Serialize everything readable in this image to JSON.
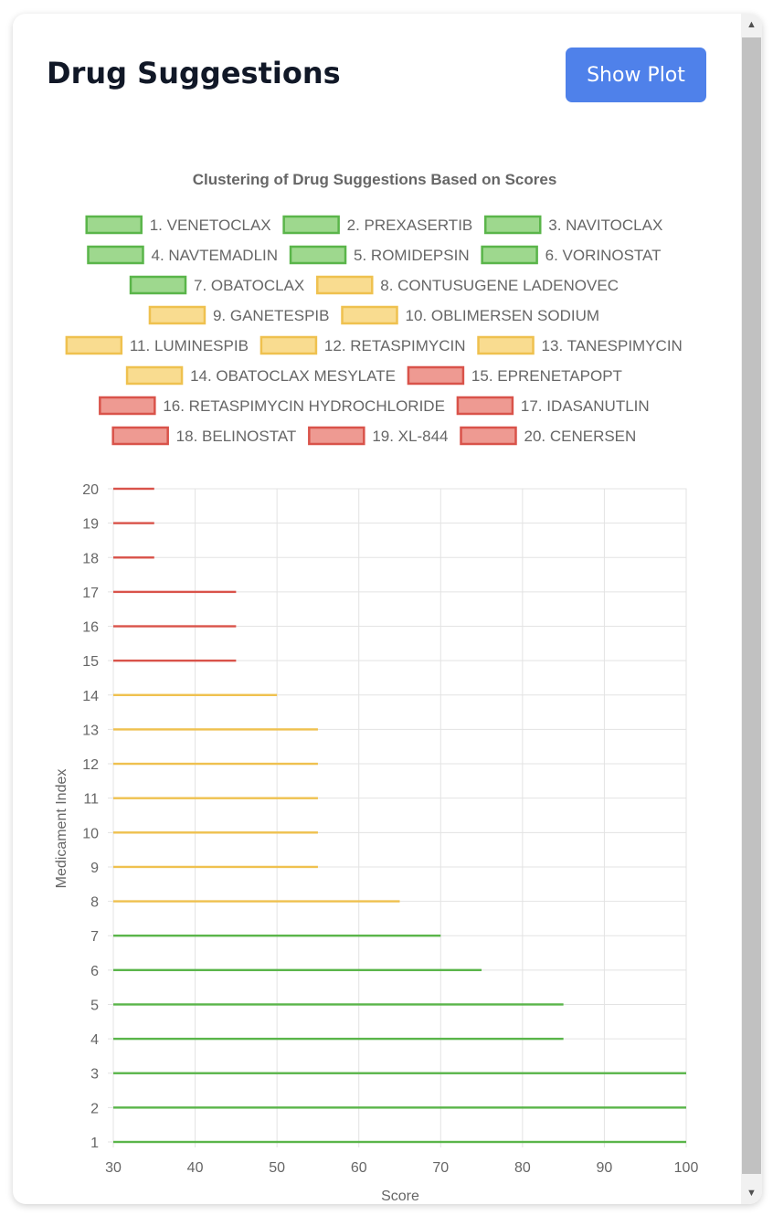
{
  "header": {
    "title": "Drug Suggestions",
    "show_plot_label": "Show Plot"
  },
  "colors": {
    "green_stroke": "#5ab54a",
    "green_fill": "#9ed88e",
    "yellow_stroke": "#efc14f",
    "yellow_fill": "#f9dc90",
    "red_stroke": "#d9534a",
    "red_fill": "#ee9a92",
    "grid": "#e3e3e3",
    "text": "#666666"
  },
  "icons": {
    "scroll_up": "▲",
    "scroll_down": "▼"
  },
  "chart_data": {
    "type": "bar",
    "orientation": "horizontal",
    "title": "Clustering of Drug Suggestions Based on Scores",
    "xlabel": "Score",
    "ylabel": "Medicament Index",
    "xlim": [
      30,
      100
    ],
    "ylim": [
      1,
      20
    ],
    "x_ticks": [
      30,
      40,
      50,
      60,
      70,
      80,
      90,
      100
    ],
    "y_ticks": [
      1,
      2,
      3,
      4,
      5,
      6,
      7,
      8,
      9,
      10,
      11,
      12,
      13,
      14,
      15,
      16,
      17,
      18,
      19,
      20
    ],
    "grid": true,
    "legend_position": "top-center",
    "series": [
      {
        "name": "1. VENETOCLAX",
        "index": 1,
        "score": 100,
        "group": "green"
      },
      {
        "name": "2. PREXASERTIB",
        "index": 2,
        "score": 100,
        "group": "green"
      },
      {
        "name": "3. NAVITOCLAX",
        "index": 3,
        "score": 100,
        "group": "green"
      },
      {
        "name": "4. NAVTEMADLIN",
        "index": 4,
        "score": 85,
        "group": "green"
      },
      {
        "name": "5. ROMIDEPSIN",
        "index": 5,
        "score": 85,
        "group": "green"
      },
      {
        "name": "6. VORINOSTAT",
        "index": 6,
        "score": 75,
        "group": "green"
      },
      {
        "name": "7. OBATOCLAX",
        "index": 7,
        "score": 70,
        "group": "green"
      },
      {
        "name": "8. CONTUSUGENE LADENOVEC",
        "index": 8,
        "score": 65,
        "group": "yellow"
      },
      {
        "name": "9. GANETESPIB",
        "index": 9,
        "score": 55,
        "group": "yellow"
      },
      {
        "name": "10. OBLIMERSEN SODIUM",
        "index": 10,
        "score": 55,
        "group": "yellow"
      },
      {
        "name": "11. LUMINESPIB",
        "index": 11,
        "score": 55,
        "group": "yellow"
      },
      {
        "name": "12. RETASPIMYCIN",
        "index": 12,
        "score": 55,
        "group": "yellow"
      },
      {
        "name": "13. TANESPIMYCIN",
        "index": 13,
        "score": 55,
        "group": "yellow"
      },
      {
        "name": "14. OBATOCLAX MESYLATE",
        "index": 14,
        "score": 50,
        "group": "yellow"
      },
      {
        "name": "15. EPRENETAPOPT",
        "index": 15,
        "score": 45,
        "group": "red"
      },
      {
        "name": "16. RETASPIMYCIN HYDROCHLORIDE",
        "index": 16,
        "score": 45,
        "group": "red"
      },
      {
        "name": "17. IDASANUTLIN",
        "index": 17,
        "score": 45,
        "group": "red"
      },
      {
        "name": "18. BELINOSTAT",
        "index": 18,
        "score": 35,
        "group": "red"
      },
      {
        "name": "19. XL-844",
        "index": 19,
        "score": 35,
        "group": "red"
      },
      {
        "name": "20. CENERSEN",
        "index": 20,
        "score": 35,
        "group": "red"
      }
    ]
  }
}
